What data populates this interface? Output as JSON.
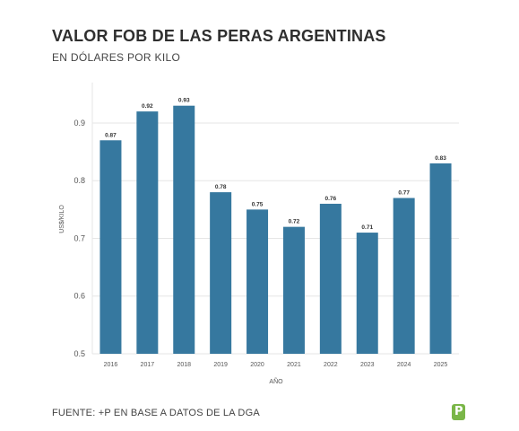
{
  "title": "VALOR FOB DE LAS PERAS ARGENTINAS",
  "subtitle": "EN DÓLARES POR KILO",
  "source": "FUENTE: +P EN BASE A DATOS DE LA DGA",
  "logo_icon": "p-brand-logo-icon",
  "colors": {
    "bar": "#36789f",
    "grid": "#e6e6e6",
    "axis_text": "#555555",
    "label_text": "#333333",
    "logo": "#7ab648"
  },
  "chart_data": {
    "type": "bar",
    "categories": [
      "2016",
      "2017",
      "2018",
      "2019",
      "2020",
      "2021",
      "2022",
      "2023",
      "2024",
      "2025"
    ],
    "values": [
      0.87,
      0.92,
      0.93,
      0.78,
      0.75,
      0.72,
      0.76,
      0.71,
      0.77,
      0.83
    ],
    "value_labels": [
      "0.87",
      "0.92",
      "0.93",
      "0.78",
      "0.75",
      "0.72",
      "0.76",
      "0.71",
      "0.77",
      "0.83"
    ],
    "title": "VALOR FOB DE LAS PERAS ARGENTINAS",
    "subtitle": "EN DÓLARES POR KILO",
    "xlabel": "AÑO",
    "ylabel": "US$/KILO",
    "ylim": [
      0.5,
      0.97
    ],
    "yticks": [
      0.5,
      0.6,
      0.7,
      0.8,
      0.9
    ],
    "ytick_labels": [
      "0.5",
      "0.6",
      "0.7",
      "0.8",
      "0.9"
    ],
    "grid": true,
    "legend": "none"
  }
}
